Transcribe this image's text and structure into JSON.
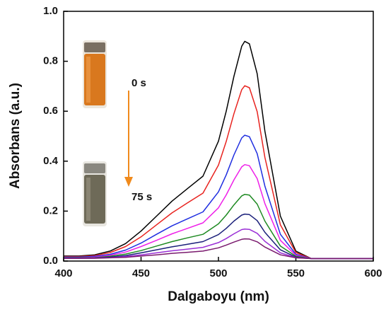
{
  "chart_data": {
    "type": "line",
    "x_label": "Dalgaboyu (nm)",
    "y_label": "Absorbans (a.u.)",
    "annotations": [
      "0 s",
      "75 s"
    ],
    "x": [
      400,
      410,
      420,
      430,
      440,
      450,
      460,
      470,
      480,
      490,
      500,
      505,
      510,
      515,
      517,
      520,
      525,
      530,
      540,
      550,
      560,
      570,
      580,
      590,
      600
    ],
    "series": [
      {
        "color": "#000000",
        "values": [
          0.02,
          0.02,
          0.025,
          0.04,
          0.07,
          0.12,
          0.18,
          0.24,
          0.29,
          0.34,
          0.48,
          0.6,
          0.74,
          0.86,
          0.88,
          0.87,
          0.75,
          0.52,
          0.18,
          0.04,
          0.01,
          0.01,
          0.01,
          0.01,
          0.01
        ]
      },
      {
        "color": "#e8231f",
        "values": [
          0.018,
          0.018,
          0.022,
          0.034,
          0.058,
          0.097,
          0.145,
          0.193,
          0.233,
          0.272,
          0.384,
          0.479,
          0.59,
          0.686,
          0.702,
          0.694,
          0.598,
          0.415,
          0.145,
          0.034,
          0.01,
          0.01,
          0.01,
          0.01,
          0.01
        ]
      },
      {
        "color": "#1f2ee0",
        "values": [
          0.016,
          0.016,
          0.019,
          0.027,
          0.044,
          0.072,
          0.107,
          0.141,
          0.169,
          0.197,
          0.277,
          0.345,
          0.425,
          0.493,
          0.504,
          0.498,
          0.43,
          0.3,
          0.107,
          0.027,
          0.01,
          0.01,
          0.01,
          0.01,
          0.01
        ]
      },
      {
        "color": "#ee1fe8",
        "values": [
          0.014,
          0.014,
          0.016,
          0.023,
          0.036,
          0.058,
          0.083,
          0.109,
          0.131,
          0.153,
          0.213,
          0.265,
          0.325,
          0.377,
          0.386,
          0.382,
          0.33,
          0.23,
          0.083,
          0.023,
          0.01,
          0.01,
          0.01,
          0.01,
          0.01
        ]
      },
      {
        "color": "#1e8a22",
        "values": [
          0.013,
          0.013,
          0.014,
          0.019,
          0.028,
          0.042,
          0.06,
          0.078,
          0.093,
          0.107,
          0.149,
          0.184,
          0.225,
          0.261,
          0.267,
          0.264,
          0.228,
          0.16,
          0.06,
          0.019,
          0.01,
          0.01,
          0.01,
          0.01,
          0.01
        ]
      },
      {
        "color": "#1a1f7a",
        "values": [
          0.012,
          0.012,
          0.013,
          0.016,
          0.022,
          0.033,
          0.045,
          0.057,
          0.067,
          0.078,
          0.106,
          0.131,
          0.16,
          0.184,
          0.188,
          0.186,
          0.162,
          0.115,
          0.045,
          0.016,
          0.01,
          0.01,
          0.01,
          0.01,
          0.01
        ]
      },
      {
        "color": "#9a2fd6",
        "values": [
          0.011,
          0.011,
          0.012,
          0.014,
          0.018,
          0.025,
          0.033,
          0.041,
          0.048,
          0.055,
          0.074,
          0.09,
          0.109,
          0.126,
          0.128,
          0.127,
          0.111,
          0.079,
          0.033,
          0.014,
          0.01,
          0.01,
          0.01,
          0.01,
          0.01
        ]
      },
      {
        "color": "#7a1a6e",
        "values": [
          0.011,
          0.011,
          0.011,
          0.013,
          0.015,
          0.02,
          0.025,
          0.031,
          0.035,
          0.04,
          0.053,
          0.064,
          0.076,
          0.087,
          0.089,
          0.088,
          0.077,
          0.056,
          0.025,
          0.013,
          0.01,
          0.01,
          0.01,
          0.01,
          0.01
        ]
      }
    ],
    "xlim": [
      400,
      600
    ],
    "xticks": [
      400,
      450,
      500,
      550,
      600
    ],
    "ylim": [
      0,
      1
    ],
    "yticks": [
      {
        "value": 0,
        "label": "0.0"
      },
      0.2,
      0.4,
      0.6,
      0.8,
      {
        "value": 1,
        "label": "1.0"
      }
    ]
  }
}
